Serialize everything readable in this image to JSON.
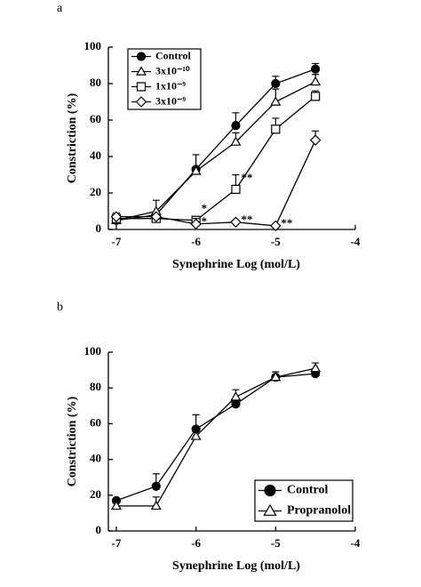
{
  "chart_data": [
    {
      "type": "line",
      "panel": "a",
      "x_label": "Synephrine Log (mol/L)",
      "y_label": "Constriction (%)",
      "x": [
        -7,
        -6.5,
        -6,
        -5.5,
        -5,
        -4.5
      ],
      "xlim": [
        -7.1,
        -4
      ],
      "xticks": [
        -7,
        -6,
        -5,
        -4
      ],
      "ylim": [
        0,
        100
      ],
      "yticks": [
        0,
        20,
        40,
        60,
        80,
        100
      ],
      "legend": "upper-left",
      "series": [
        {
          "name": "Control",
          "color": "#000000",
          "marker": "circle",
          "values": [
            5,
            8,
            33,
            57,
            80,
            88
          ],
          "errors": [
            null,
            null,
            8,
            7,
            4,
            3
          ],
          "point_labels": [
            null,
            null,
            null,
            null,
            null,
            null
          ]
        },
        {
          "name": "3x10⁻¹⁰",
          "color": "#000000",
          "marker": "triangle",
          "values": [
            5,
            10,
            32,
            48,
            70,
            81
          ],
          "errors": [
            2,
            6,
            null,
            5,
            7,
            4
          ],
          "point_labels": [
            null,
            null,
            null,
            null,
            null,
            null
          ]
        },
        {
          "name": "1x10⁻⁹",
          "color": "#000000",
          "marker": "square",
          "values": [
            6,
            6,
            5,
            22,
            55,
            73
          ],
          "errors": [
            2,
            2,
            2,
            8,
            6,
            3
          ],
          "point_labels": [
            null,
            null,
            "*",
            "**",
            null,
            null
          ]
        },
        {
          "name": "3x10⁻⁹",
          "color": "#000000",
          "marker": "diamond",
          "values": [
            7,
            7,
            3,
            4,
            2,
            49
          ],
          "errors": [
            2,
            null,
            3,
            null,
            null,
            5
          ],
          "point_labels": [
            null,
            null,
            "*",
            "**",
            "**",
            null
          ]
        }
      ]
    },
    {
      "type": "line",
      "panel": "b",
      "x_label": "Synephrine Log (mol/L)",
      "y_label": "Constriction (%)",
      "x": [
        -7,
        -6.5,
        -6,
        -5.5,
        -5,
        -4.5
      ],
      "xlim": [
        -7.1,
        -4
      ],
      "xticks": [
        -7,
        -6,
        -5,
        -4
      ],
      "ylim": [
        0,
        100
      ],
      "yticks": [
        0,
        20,
        40,
        60,
        80,
        100
      ],
      "legend": "lower-right",
      "series": [
        {
          "name": "Control",
          "color": "#000000",
          "marker": "circle",
          "values": [
            17,
            25,
            57,
            71,
            86,
            88
          ],
          "errors": [
            null,
            7,
            8,
            null,
            null,
            null
          ]
        },
        {
          "name": "Propranolol",
          "color": "#000000",
          "marker": "triangle",
          "values": [
            14,
            14,
            53,
            75,
            86,
            91
          ],
          "errors": [
            null,
            5,
            null,
            4,
            3,
            3
          ]
        }
      ]
    }
  ]
}
